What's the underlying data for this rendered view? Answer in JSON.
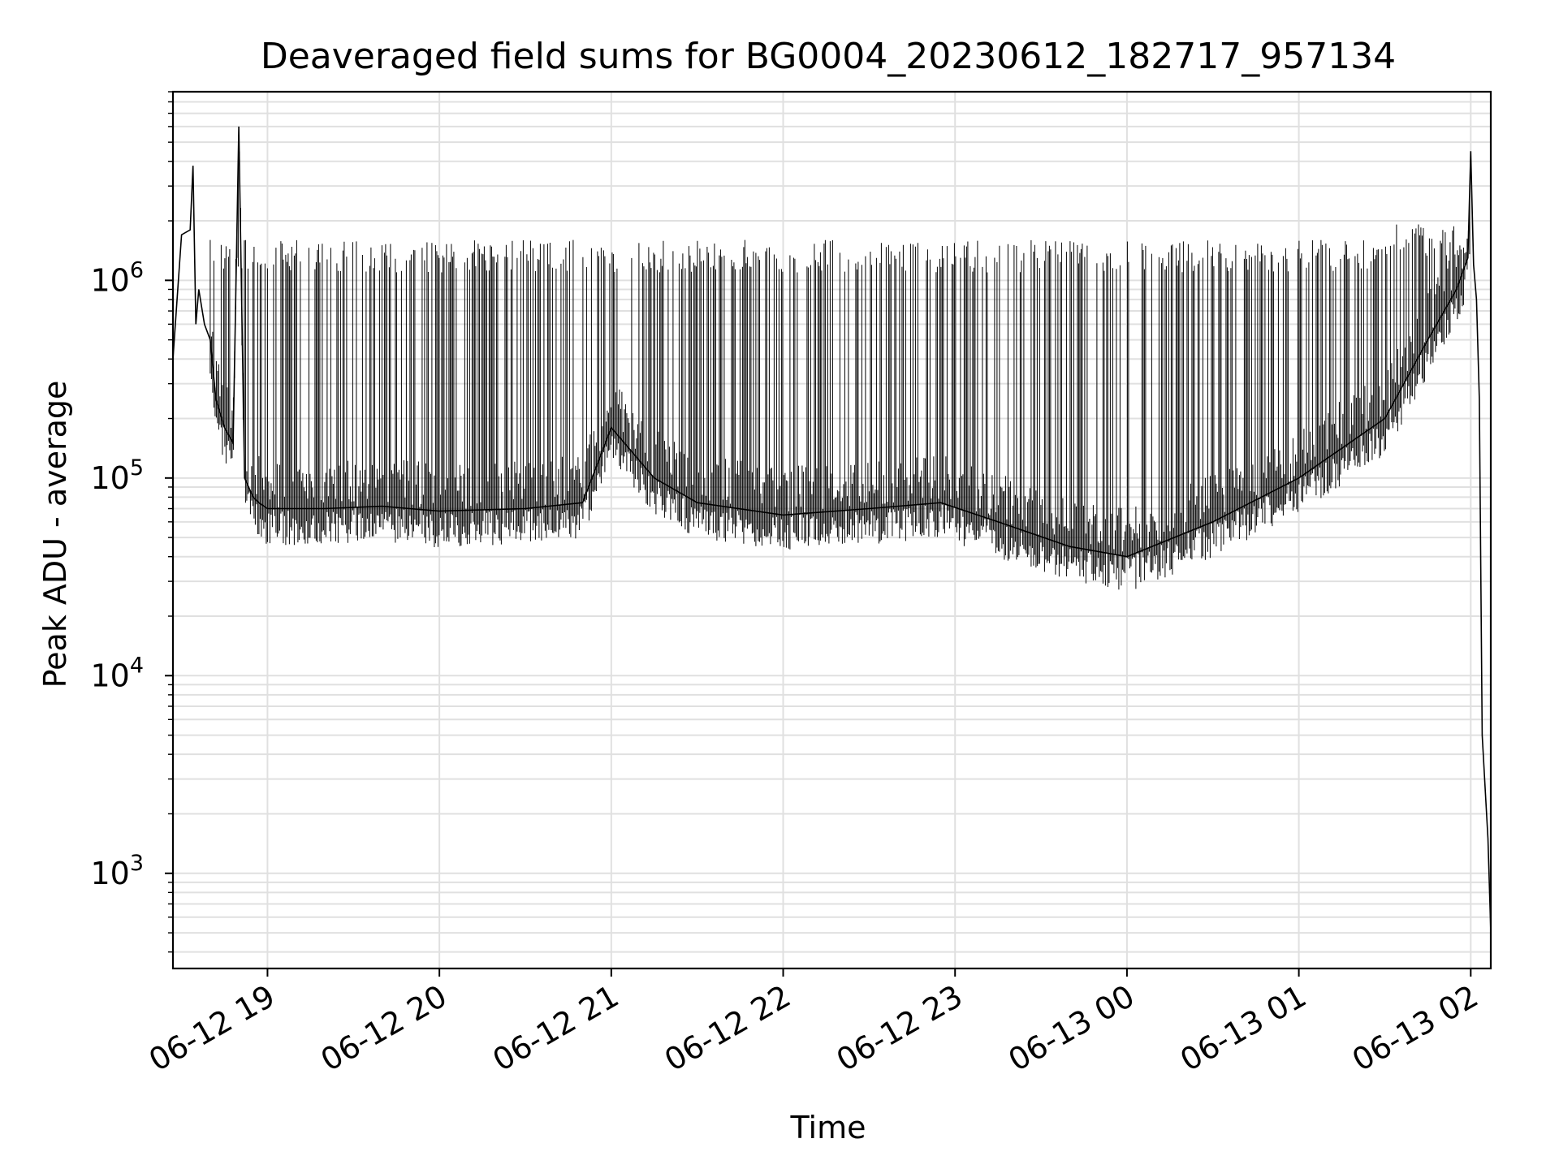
{
  "chart_data": {
    "type": "line",
    "title": "Deaveraged field sums for BG0004_20230612_182717_957134",
    "xlabel": "Time",
    "ylabel": "Peak ADU - average",
    "x_ticks": [
      "06-12 19",
      "06-12 20",
      "06-12 21",
      "06-12 22",
      "06-12 23",
      "06-13 00",
      "06-13 01",
      "06-13 02"
    ],
    "y_ticks": [
      {
        "base": "10",
        "exp": "3",
        "value": 1000
      },
      {
        "base": "10",
        "exp": "4",
        "value": 10000
      },
      {
        "base": "10",
        "exp": "5",
        "value": 100000
      },
      {
        "base": "10",
        "exp": "6",
        "value": 1000000
      }
    ],
    "y_scale": "log",
    "ylim": [
      330,
      9000000
    ],
    "xlim": [
      "2023-06-12 18:27",
      "2023-06-13 02:07"
    ],
    "grid": true,
    "line_color": "#000000",
    "grid_color": "#e0e0e0",
    "series": [
      {
        "x": [
          "2023-06-12 18:27",
          "2023-06-12 18:30",
          "2023-06-12 18:33",
          "2023-06-12 18:34",
          "2023-06-12 18:35",
          "2023-06-12 18:36",
          "2023-06-12 18:38",
          "2023-06-12 18:40",
          "2023-06-12 18:42",
          "2023-06-12 18:45",
          "2023-06-12 18:48",
          "2023-06-12 18:50",
          "2023-06-12 18:52",
          "2023-06-12 18:55",
          "2023-06-12 18:57",
          "2023-06-12 19:00",
          "2023-06-12 19:20",
          "2023-06-12 19:40",
          "2023-06-12 20:00",
          "2023-06-12 20:30",
          "2023-06-12 20:50",
          "2023-06-12 21:00",
          "2023-06-12 21:15",
          "2023-06-12 21:30",
          "2023-06-12 22:00",
          "2023-06-12 22:30",
          "2023-06-12 22:55",
          "2023-06-12 23:15",
          "2023-06-12 23:40",
          "2023-06-13 00:00",
          "2023-06-13 00:30",
          "2023-06-13 01:00",
          "2023-06-13 01:30",
          "2023-06-13 01:45",
          "2023-06-13 01:55",
          "2023-06-13 01:59",
          "2023-06-13 02:00",
          "2023-06-13 02:01",
          "2023-06-13 02:02",
          "2023-06-13 02:03",
          "2023-06-13 02:04",
          "2023-06-13 02:06",
          "2023-06-13 02:07"
        ],
        "y": [
          400000,
          1700000,
          1800000,
          3800000,
          600000,
          900000,
          600000,
          500000,
          250000,
          180000,
          150000,
          6000000,
          100000,
          80000,
          75000,
          70000,
          70000,
          72000,
          68000,
          70000,
          75000,
          180000,
          100000,
          75000,
          65000,
          70000,
          75000,
          60000,
          45000,
          40000,
          60000,
          100000,
          200000,
          500000,
          900000,
          1300000,
          4500000,
          1200000,
          800000,
          250000,
          5000,
          1500,
          500
        ]
      }
    ]
  }
}
